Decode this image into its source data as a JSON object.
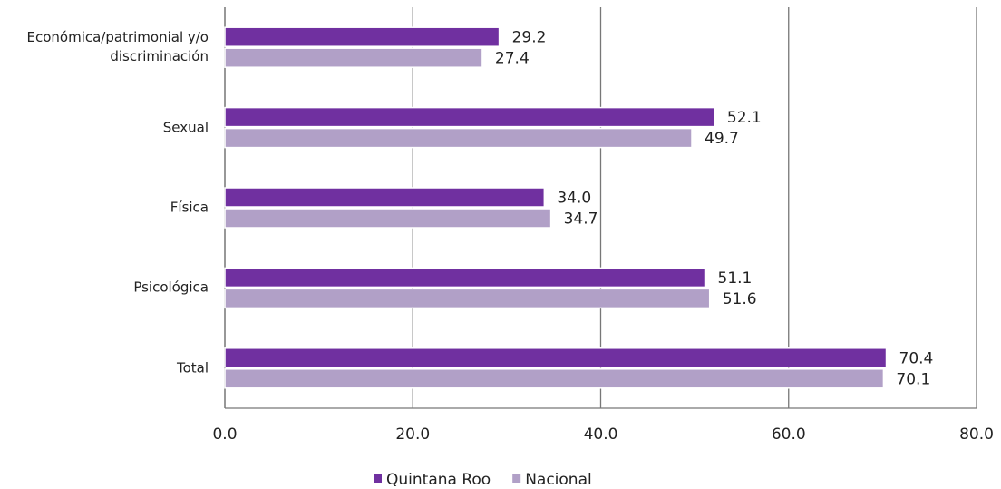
{
  "chart_data": {
    "type": "bar",
    "orientation": "horizontal",
    "categories": [
      "Económica/patrimonial y/o discriminación",
      "Sexual",
      "Física",
      "Psicológica",
      "Total"
    ],
    "series": [
      {
        "name": "Quintana Roo",
        "color": "#7030a0",
        "values": [
          29.2,
          52.1,
          34.0,
          51.1,
          70.4
        ],
        "value_labels": [
          "29.2",
          "52.1",
          "34.0",
          "51.1",
          "70.4"
        ]
      },
      {
        "name": "Nacional",
        "color": "#b1a0c7",
        "values": [
          27.4,
          49.7,
          34.7,
          51.6,
          70.1
        ],
        "value_labels": [
          "27.4",
          "49.7",
          "34.7",
          "51.6",
          "70.1"
        ]
      }
    ],
    "xlim": [
      0,
      80
    ],
    "xticks": [
      {
        "value": 0,
        "label": "0.0"
      },
      {
        "value": 20,
        "label": "20.0"
      },
      {
        "value": 40,
        "label": "40.0"
      },
      {
        "value": 60,
        "label": "60.0"
      },
      {
        "value": 80,
        "label": "80.0"
      }
    ],
    "grid": true,
    "legend": "bottom"
  }
}
